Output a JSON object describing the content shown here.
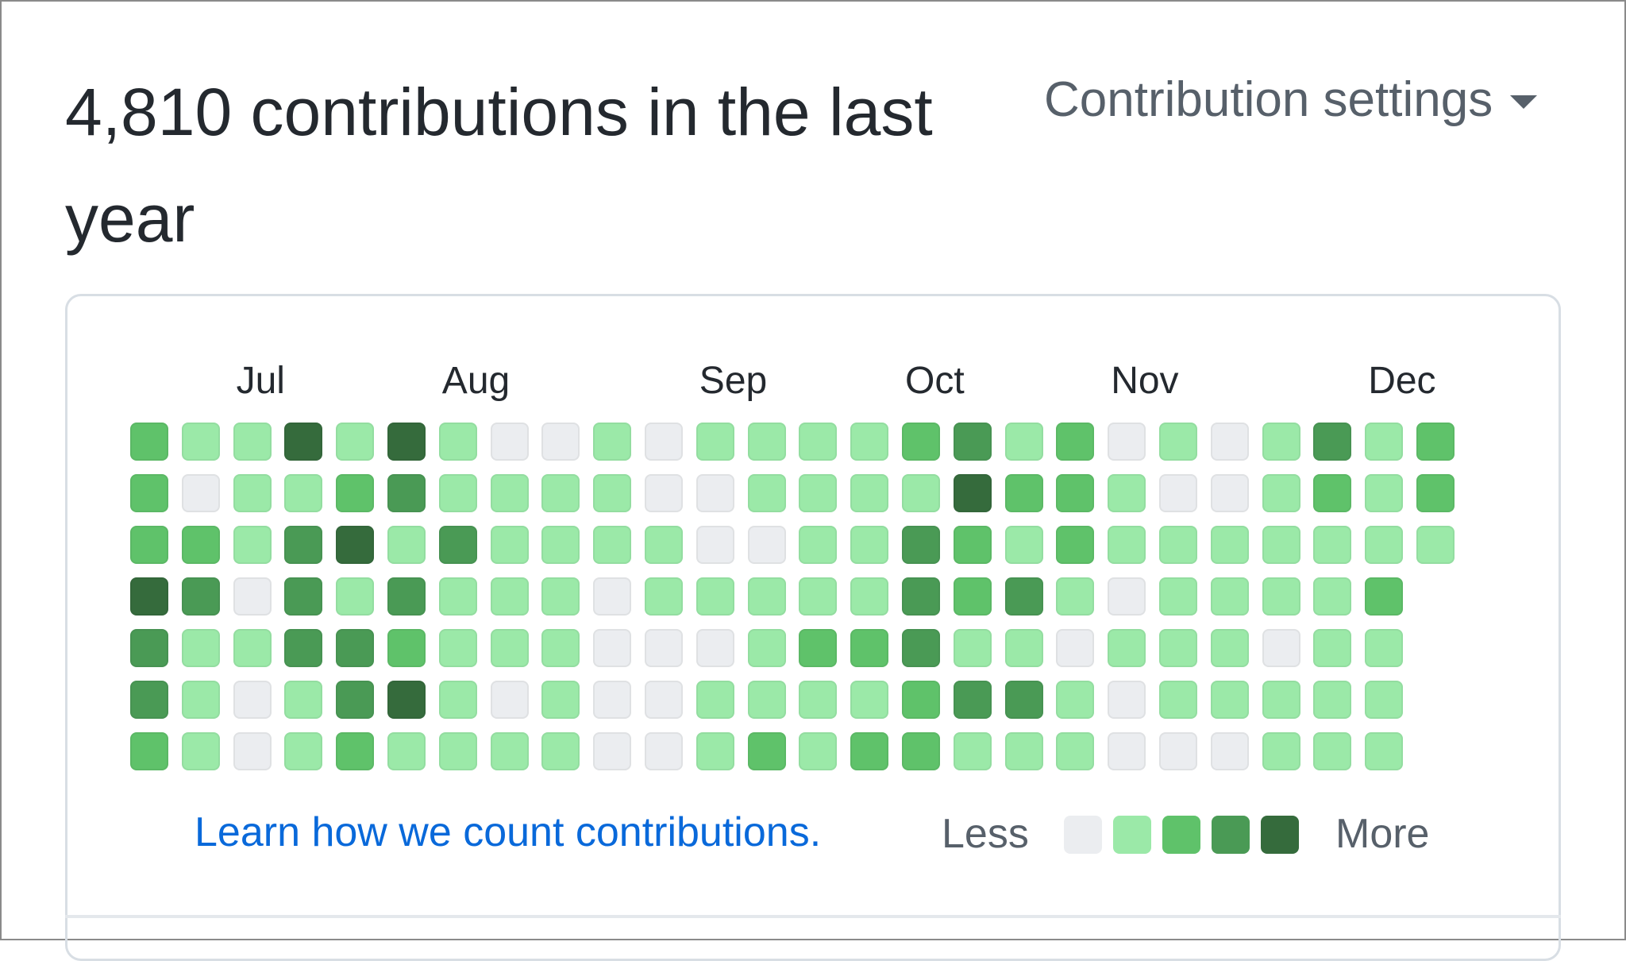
{
  "header": {
    "contributions_title": "4,810 contributions in the last year",
    "settings_label": "Contribution settings"
  },
  "chart_data": {
    "type": "heatmap",
    "months": [
      "Jul",
      "Aug",
      "Sep",
      "Oct",
      "Nov",
      "Dec"
    ],
    "month_week_index": [
      2,
      6,
      11,
      15,
      19,
      24
    ],
    "weeks": [
      [
        2,
        2,
        2,
        4,
        3,
        3,
        2
      ],
      [
        1,
        0,
        2,
        3,
        1,
        1,
        1
      ],
      [
        1,
        1,
        1,
        0,
        1,
        0,
        0
      ],
      [
        4,
        1,
        3,
        3,
        3,
        1,
        1
      ],
      [
        1,
        2,
        4,
        1,
        3,
        3,
        2
      ],
      [
        4,
        3,
        1,
        3,
        2,
        4,
        1
      ],
      [
        1,
        1,
        3,
        1,
        1,
        1,
        1
      ],
      [
        0,
        1,
        1,
        1,
        1,
        0,
        1
      ],
      [
        0,
        1,
        1,
        1,
        1,
        1,
        1
      ],
      [
        1,
        1,
        1,
        0,
        0,
        0,
        0
      ],
      [
        0,
        0,
        1,
        1,
        0,
        0,
        0
      ],
      [
        1,
        0,
        0,
        1,
        0,
        1,
        1
      ],
      [
        1,
        1,
        0,
        1,
        1,
        1,
        2
      ],
      [
        1,
        1,
        1,
        1,
        2,
        1,
        1
      ],
      [
        1,
        1,
        1,
        1,
        2,
        1,
        2
      ],
      [
        2,
        1,
        3,
        3,
        3,
        2,
        2
      ],
      [
        3,
        4,
        2,
        2,
        1,
        3,
        1
      ],
      [
        1,
        2,
        1,
        3,
        1,
        3,
        1
      ],
      [
        2,
        2,
        2,
        1,
        0,
        1,
        1
      ],
      [
        0,
        1,
        1,
        0,
        1,
        0,
        0
      ],
      [
        1,
        0,
        1,
        1,
        1,
        1,
        0
      ],
      [
        0,
        0,
        1,
        1,
        1,
        1,
        0
      ],
      [
        1,
        1,
        1,
        1,
        0,
        1,
        1
      ],
      [
        3,
        2,
        1,
        1,
        1,
        1,
        1
      ],
      [
        1,
        1,
        1,
        2,
        1,
        1,
        1
      ],
      [
        2,
        2,
        1
      ]
    ],
    "level_colors": [
      "#ebedf0",
      "#9be9a8",
      "#5fc26a",
      "#4a9a55",
      "#356b3c"
    ],
    "legend": {
      "less": "Less",
      "more": "More"
    }
  },
  "footer": {
    "learn_link": "Learn how we count contributions."
  }
}
